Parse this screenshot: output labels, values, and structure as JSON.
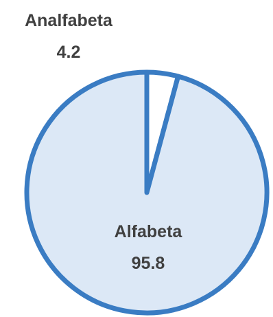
{
  "chart_data": {
    "type": "pie",
    "title": "",
    "categories": [
      "Analfabeta",
      "Alfabeta"
    ],
    "values": [
      4.2,
      95.8
    ],
    "colors": {
      "Analfabeta": "#ffffff",
      "Alfabeta": "#dce8f6",
      "stroke": "#3a7cc3",
      "label": "#404040"
    },
    "labels": [
      {
        "name": "Analfabeta",
        "value": "4.2",
        "placement": "outside-top"
      },
      {
        "name": "Alfabeta",
        "value": "95.8",
        "placement": "inside"
      }
    ],
    "start_angle_deg": 0,
    "direction": "clockwise",
    "legend": "none"
  }
}
